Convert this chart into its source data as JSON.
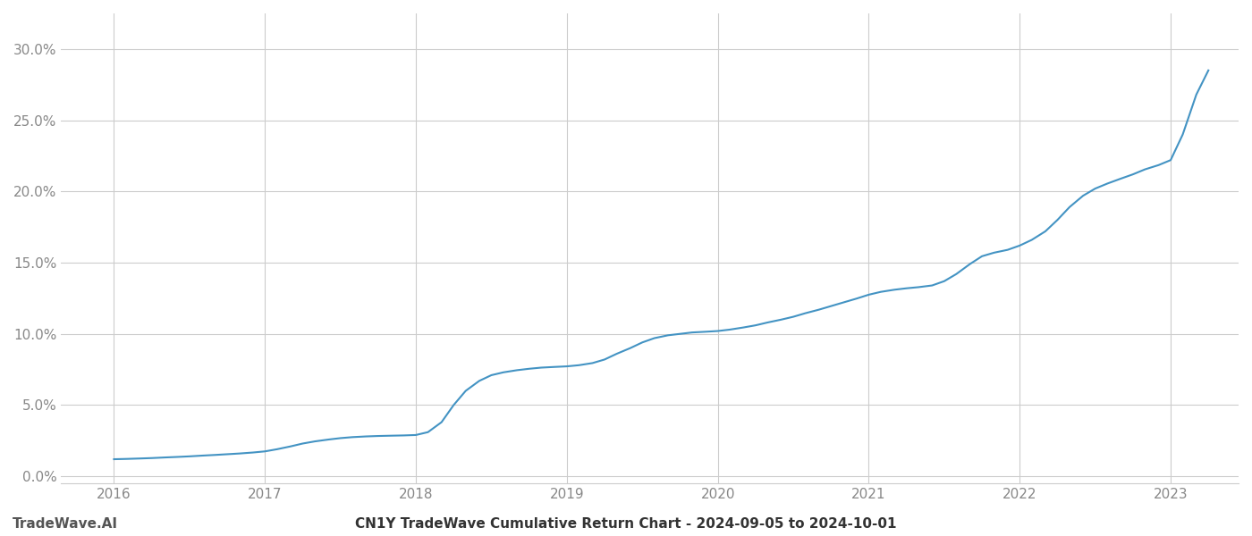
{
  "title": "CN1Y TradeWave Cumulative Return Chart - 2024-09-05 to 2024-10-01",
  "watermark": "TradeWave.AI",
  "line_color": "#4393c3",
  "background_color": "#ffffff",
  "x_values": [
    2016.0,
    2016.08,
    2016.17,
    2016.25,
    2016.33,
    2016.42,
    2016.5,
    2016.58,
    2016.67,
    2016.75,
    2016.83,
    2016.92,
    2017.0,
    2017.08,
    2017.17,
    2017.25,
    2017.33,
    2017.42,
    2017.5,
    2017.58,
    2017.67,
    2017.75,
    2017.83,
    2017.92,
    2018.0,
    2018.08,
    2018.17,
    2018.25,
    2018.33,
    2018.42,
    2018.5,
    2018.58,
    2018.67,
    2018.75,
    2018.83,
    2018.92,
    2019.0,
    2019.08,
    2019.17,
    2019.25,
    2019.33,
    2019.42,
    2019.5,
    2019.58,
    2019.67,
    2019.75,
    2019.83,
    2019.92,
    2020.0,
    2020.08,
    2020.17,
    2020.25,
    2020.33,
    2020.42,
    2020.5,
    2020.58,
    2020.67,
    2020.75,
    2020.83,
    2020.92,
    2021.0,
    2021.08,
    2021.17,
    2021.25,
    2021.33,
    2021.42,
    2021.5,
    2021.58,
    2021.67,
    2021.75,
    2021.83,
    2021.92,
    2022.0,
    2022.08,
    2022.17,
    2022.25,
    2022.33,
    2022.42,
    2022.5,
    2022.58,
    2022.67,
    2022.75,
    2022.83,
    2022.92,
    2023.0,
    2023.08,
    2023.17,
    2023.25
  ],
  "y_values": [
    0.012,
    0.0122,
    0.0125,
    0.0128,
    0.0132,
    0.0136,
    0.014,
    0.0145,
    0.015,
    0.0155,
    0.016,
    0.0167,
    0.0175,
    0.019,
    0.021,
    0.023,
    0.0245,
    0.0258,
    0.0268,
    0.0275,
    0.028,
    0.0283,
    0.0285,
    0.0287,
    0.029,
    0.031,
    0.038,
    0.05,
    0.06,
    0.067,
    0.071,
    0.073,
    0.0745,
    0.0755,
    0.0763,
    0.0768,
    0.0772,
    0.078,
    0.0795,
    0.082,
    0.086,
    0.09,
    0.094,
    0.097,
    0.099,
    0.1,
    0.101,
    0.1015,
    0.102,
    0.103,
    0.1045,
    0.106,
    0.108,
    0.11,
    0.112,
    0.1145,
    0.117,
    0.1195,
    0.122,
    0.1248,
    0.1275,
    0.1295,
    0.131,
    0.132,
    0.1328,
    0.134,
    0.137,
    0.142,
    0.149,
    0.1545,
    0.157,
    0.159,
    0.162,
    0.166,
    0.172,
    0.18,
    0.189,
    0.197,
    0.202,
    0.2055,
    0.209,
    0.212,
    0.2155,
    0.2185,
    0.222,
    0.24,
    0.268,
    0.285
  ],
  "xlim": [
    2015.65,
    2023.45
  ],
  "ylim": [
    -0.005,
    0.325
  ],
  "yticks": [
    0.0,
    0.05,
    0.1,
    0.15,
    0.2,
    0.25,
    0.3
  ],
  "xticks": [
    2016,
    2017,
    2018,
    2019,
    2020,
    2021,
    2022,
    2023
  ],
  "line_width": 1.5,
  "title_fontsize": 11,
  "tick_fontsize": 11,
  "watermark_fontsize": 11
}
